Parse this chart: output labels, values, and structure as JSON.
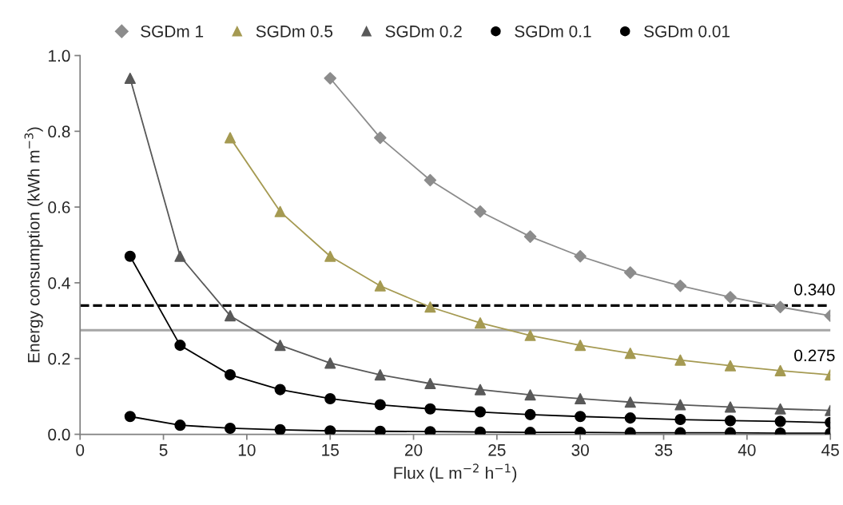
{
  "chart_data": {
    "type": "line",
    "xlabel": "Flux (L m$^{−2}$ h$^{−1}$)",
    "ylabel": "Energy consumption (kWh m$^{−3}$)",
    "xlim": [
      0,
      45
    ],
    "xticks": [
      0,
      5,
      10,
      15,
      20,
      25,
      30,
      35,
      40,
      45
    ],
    "ylim": [
      0,
      1.0
    ],
    "yticks": [
      {
        "value": 0,
        "label": "0.0"
      },
      0.2,
      0.4,
      0.6,
      0.8,
      {
        "value": 1.0,
        "label": "1.0"
      }
    ],
    "grid": false,
    "legend": "top",
    "line_style": "solid",
    "series": [
      {
        "name": "SGDm 1",
        "color": "#8c8c8c",
        "marker": "diamond",
        "x": [
          15,
          18,
          21,
          24,
          27,
          30,
          33,
          36,
          39,
          42,
          45
        ],
        "values": [
          0.94,
          0.783,
          0.671,
          0.588,
          0.522,
          0.47,
          0.427,
          0.392,
          0.362,
          0.336,
          0.313
        ]
      },
      {
        "name": "SGDm 0.5",
        "color": "#a59a52",
        "marker": "triangle",
        "x": [
          9,
          12,
          15,
          18,
          21,
          24,
          27,
          30,
          33,
          36,
          39,
          42,
          45
        ],
        "values": [
          0.783,
          0.588,
          0.47,
          0.392,
          0.336,
          0.294,
          0.261,
          0.235,
          0.214,
          0.196,
          0.181,
          0.168,
          0.157
        ]
      },
      {
        "name": "SGDm 0.2",
        "color": "#595959",
        "marker": "triangle",
        "x": [
          3,
          6,
          9,
          12,
          15,
          18,
          21,
          24,
          27,
          30,
          33,
          36,
          39,
          42,
          45
        ],
        "values": [
          0.94,
          0.47,
          0.313,
          0.235,
          0.188,
          0.157,
          0.134,
          0.118,
          0.104,
          0.094,
          0.085,
          0.078,
          0.072,
          0.067,
          0.063
        ]
      },
      {
        "name": "SGDm 0.1",
        "color": "#000000",
        "marker": "circle",
        "x": [
          3,
          6,
          9,
          12,
          15,
          18,
          21,
          24,
          27,
          30,
          33,
          36,
          39,
          42,
          45
        ],
        "values": [
          0.47,
          0.235,
          0.157,
          0.118,
          0.094,
          0.078,
          0.067,
          0.059,
          0.052,
          0.047,
          0.043,
          0.039,
          0.036,
          0.034,
          0.031
        ]
      },
      {
        "name": "SGDm 0.01",
        "color": "#000000",
        "marker": "circle",
        "x": [
          3,
          6,
          9,
          12,
          15,
          18,
          21,
          24,
          27,
          30,
          33,
          36,
          39,
          42,
          45
        ],
        "values": [
          0.047,
          0.024,
          0.016,
          0.012,
          0.009,
          0.008,
          0.007,
          0.006,
          0.005,
          0.005,
          0.004,
          0.004,
          0.004,
          0.003,
          0.003
        ]
      }
    ],
    "ref_lines": [
      {
        "axis": "y",
        "value": 0.34,
        "label": "0.340",
        "color": "#000000",
        "line_style": "dashed"
      },
      {
        "axis": "y",
        "value": 0.275,
        "label": "0.275",
        "color": "#a6a6a6",
        "line_style": "solid"
      }
    ]
  }
}
